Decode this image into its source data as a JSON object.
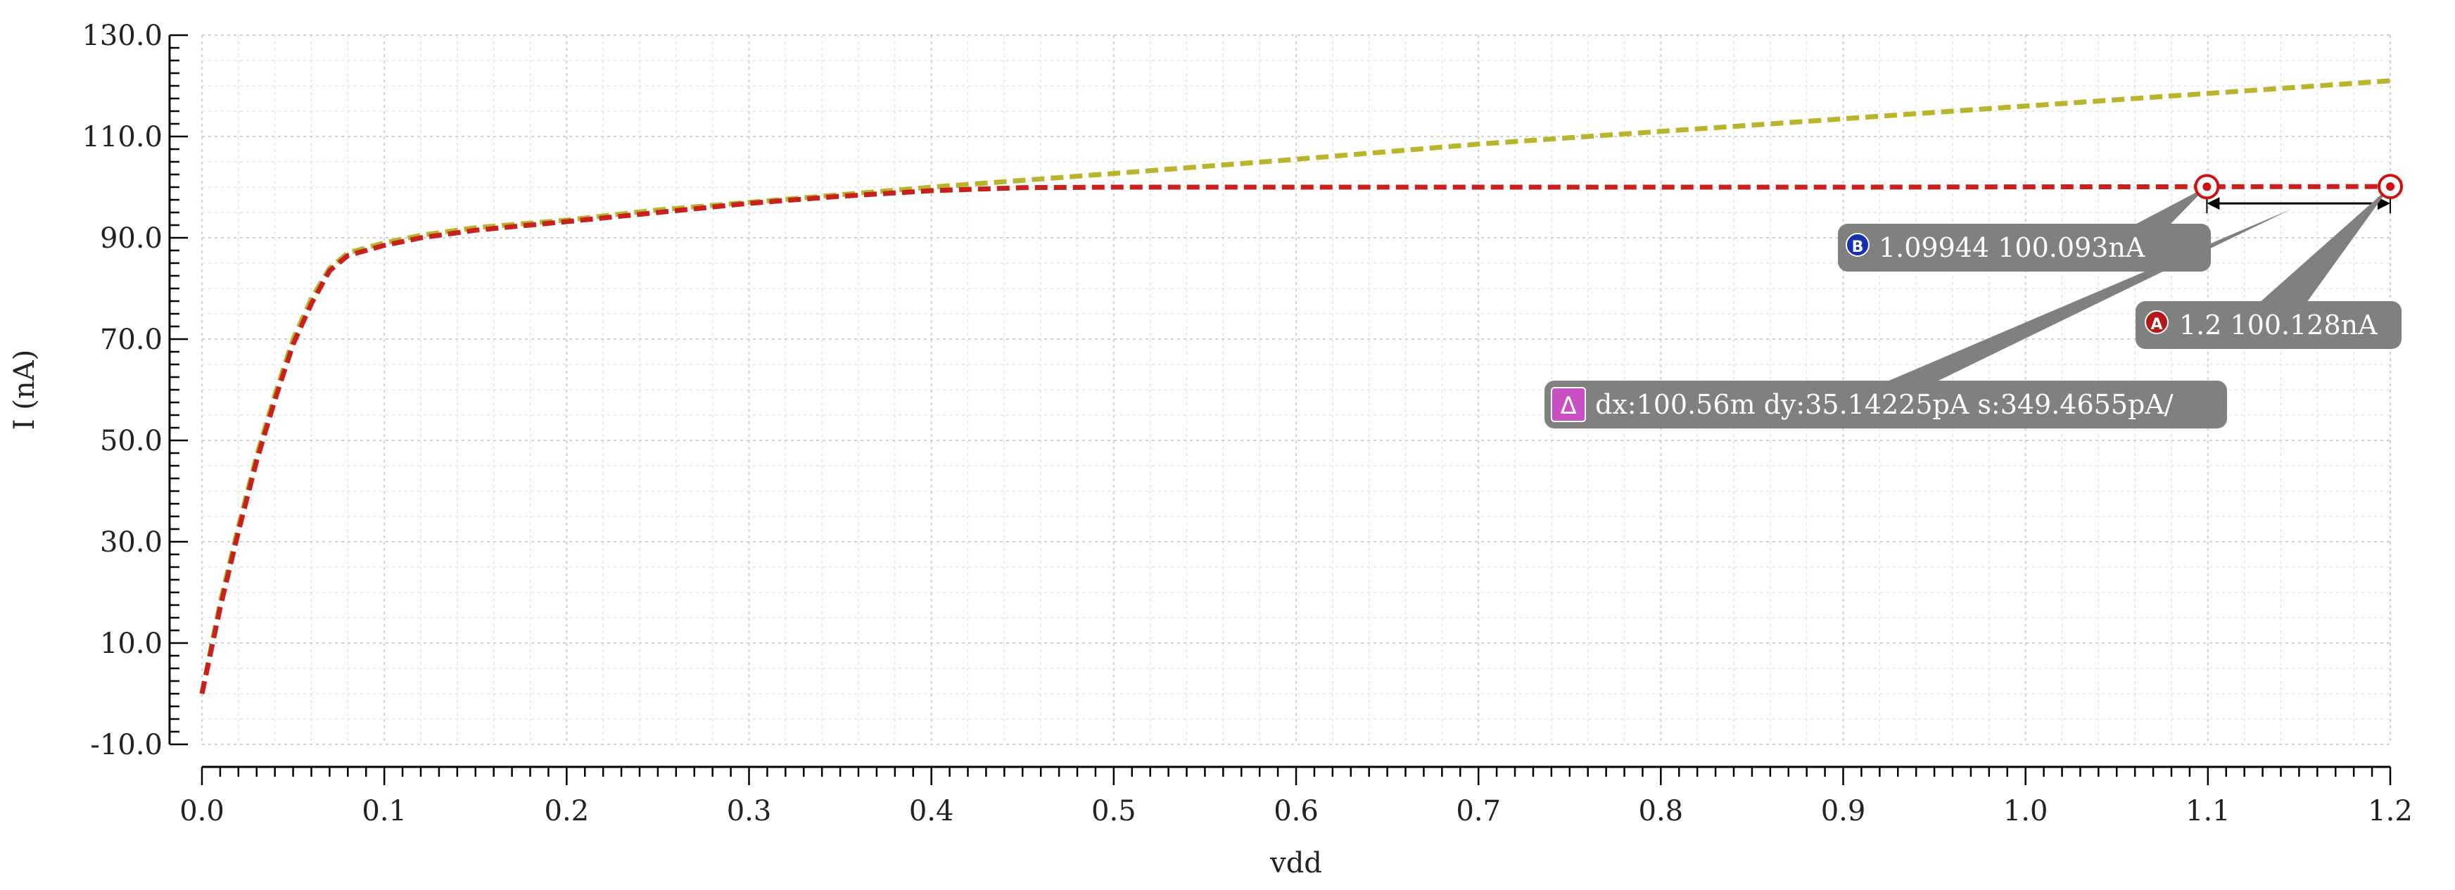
{
  "chart_data": {
    "type": "line",
    "xlabel": "vdd",
    "ylabel": "I (nA)",
    "xlim": [
      0.0,
      1.2
    ],
    "ylim": [
      -10.0,
      130.0
    ],
    "x_ticks": [
      0.0,
      0.1,
      0.2,
      0.3,
      0.4,
      0.5,
      0.6,
      0.7,
      0.8,
      0.9,
      1.0,
      1.1,
      1.2
    ],
    "x_tick_labels": [
      "0.0",
      "0.1",
      "0.2",
      "0.3",
      "0.4",
      "0.5",
      "0.6",
      "0.7",
      "0.8",
      "0.9",
      "1.0",
      "1.1",
      "1.2"
    ],
    "y_ticks": [
      -10.0,
      10.0,
      30.0,
      50.0,
      70.0,
      90.0,
      110.0,
      130.0
    ],
    "y_tick_labels": [
      "-10.0",
      "10.0",
      "30.0",
      "50.0",
      "70.0",
      "90.0",
      "110.0",
      "130.0"
    ],
    "grid": true,
    "series": [
      {
        "color": "#b9b42a",
        "style": "dashed",
        "x": [
          0.0,
          0.01,
          0.02,
          0.03,
          0.04,
          0.05,
          0.06,
          0.07,
          0.08,
          0.1,
          0.12,
          0.15,
          0.2,
          0.25,
          0.3,
          0.35,
          0.4,
          0.5,
          0.6,
          0.7,
          0.8,
          0.9,
          1.0,
          1.1,
          1.2
        ],
        "values": [
          0.0,
          18.0,
          33.0,
          47.0,
          59.0,
          70.0,
          78.0,
          84.0,
          87.0,
          89.0,
          90.5,
          92.0,
          93.5,
          95.5,
          97.0,
          98.5,
          100.0,
          102.7,
          105.5,
          108.5,
          111.0,
          113.5,
          116.0,
          118.5,
          121.0
        ]
      },
      {
        "color": "#c8201c",
        "style": "dashed",
        "x": [
          0.0,
          0.01,
          0.02,
          0.03,
          0.04,
          0.05,
          0.06,
          0.07,
          0.08,
          0.1,
          0.12,
          0.15,
          0.2,
          0.25,
          0.3,
          0.35,
          0.4,
          0.45,
          0.5,
          0.6,
          0.7,
          0.8,
          0.9,
          1.0,
          1.1,
          1.2
        ],
        "values": [
          0.0,
          17.0,
          32.0,
          46.0,
          58.0,
          69.0,
          77.0,
          83.5,
          86.5,
          88.5,
          90.0,
          91.5,
          93.2,
          95.0,
          96.8,
          98.2,
          99.3,
          99.9,
          100.0,
          100.0,
          100.0,
          100.0,
          100.0,
          100.05,
          100.09,
          100.13
        ]
      }
    ],
    "markers": [
      {
        "id": "B",
        "x": 1.09944,
        "y": 100.093,
        "label": "1.09944 100.093nA",
        "badge_color": "#1a2fb0"
      },
      {
        "id": "A",
        "x": 1.2,
        "y": 100.128,
        "label": "1.2 100.128nA",
        "badge_color": "#b51818"
      }
    ],
    "delta": {
      "symbol": "Δ",
      "label": "dx:100.56m dy:35.14225pA s:349.4655pA/",
      "badge_color": "#c94fc2"
    }
  }
}
